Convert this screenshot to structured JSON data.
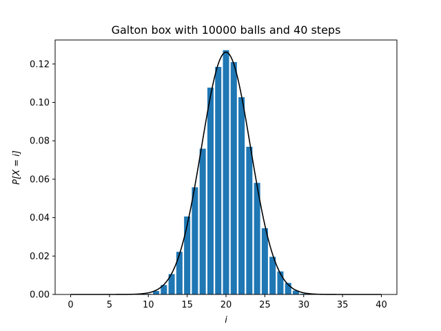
{
  "chart_data": {
    "type": "bar",
    "title": "Galton box with 10000 balls and 40 steps",
    "xlabel": "i",
    "ylabel": "P[X = i]",
    "xlim": [
      -2,
      42
    ],
    "ylim": [
      0,
      0.1325
    ],
    "x_ticks": [
      0,
      5,
      10,
      15,
      20,
      25,
      30,
      35,
      40
    ],
    "x_tick_labels": [
      "0",
      "5",
      "10",
      "15",
      "20",
      "25",
      "30",
      "35",
      "40"
    ],
    "y_ticks": [
      0,
      0.02,
      0.04,
      0.06,
      0.08,
      0.1,
      0.12
    ],
    "y_tick_labels": [
      "0.00",
      "0.02",
      "0.04",
      "0.06",
      "0.08",
      "0.10",
      "0.12"
    ],
    "grid": false,
    "bar_color": "#1f77b4",
    "curve_color": "#000000",
    "series": [
      {
        "type": "bar",
        "x": [
          0,
          1,
          2,
          3,
          4,
          5,
          6,
          7,
          8,
          9,
          10,
          11,
          12,
          13,
          14,
          15,
          16,
          17,
          18,
          19,
          20,
          21,
          22,
          23,
          24,
          25,
          26,
          27,
          28,
          29,
          30,
          31,
          32,
          33,
          34,
          35,
          36,
          37,
          38,
          39,
          40
        ],
        "values": [
          0,
          0,
          0,
          0,
          0,
          0,
          0,
          0,
          0,
          0,
          0.0003,
          0.0018,
          0.0049,
          0.0106,
          0.0222,
          0.0406,
          0.0558,
          0.0759,
          0.1077,
          0.1185,
          0.1272,
          0.121,
          0.1027,
          0.0769,
          0.0581,
          0.0345,
          0.0196,
          0.012,
          0.006,
          0.002,
          0.0004,
          0.0001,
          0,
          0,
          0,
          0,
          0,
          0,
          0,
          0,
          0
        ]
      },
      {
        "type": "line",
        "distribution": "normal",
        "mean": 20,
        "std": 3.1623
      }
    ]
  }
}
